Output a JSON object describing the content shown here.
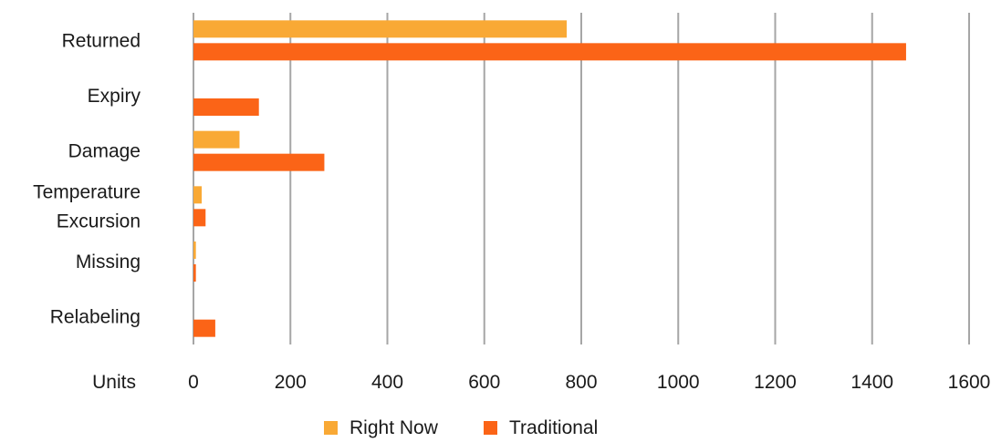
{
  "chart_data": {
    "type": "bar",
    "orientation": "horizontal",
    "categories": [
      "Returned",
      "Expiry",
      "Damage",
      "Temperature Excursion",
      "Missing",
      "Relabeling"
    ],
    "category_lines": [
      [
        "Returned"
      ],
      [
        "Expiry"
      ],
      [
        "Damage"
      ],
      [
        "Temperature",
        "Excursion"
      ],
      [
        "Missing"
      ],
      [
        "Relabeling"
      ]
    ],
    "series": [
      {
        "name": "Right Now",
        "color": "#f9a935",
        "values": [
          770,
          0,
          95,
          17,
          5,
          0
        ]
      },
      {
        "name": "Traditional",
        "color": "#fb6417",
        "values": [
          1470,
          135,
          270,
          25,
          5,
          45
        ]
      }
    ],
    "xlabel": "Units",
    "xlim": [
      0,
      1600
    ],
    "xticks": [
      0,
      200,
      400,
      600,
      800,
      1000,
      1200,
      1400,
      1600
    ],
    "grid": true,
    "legend_position": "bottom"
  }
}
